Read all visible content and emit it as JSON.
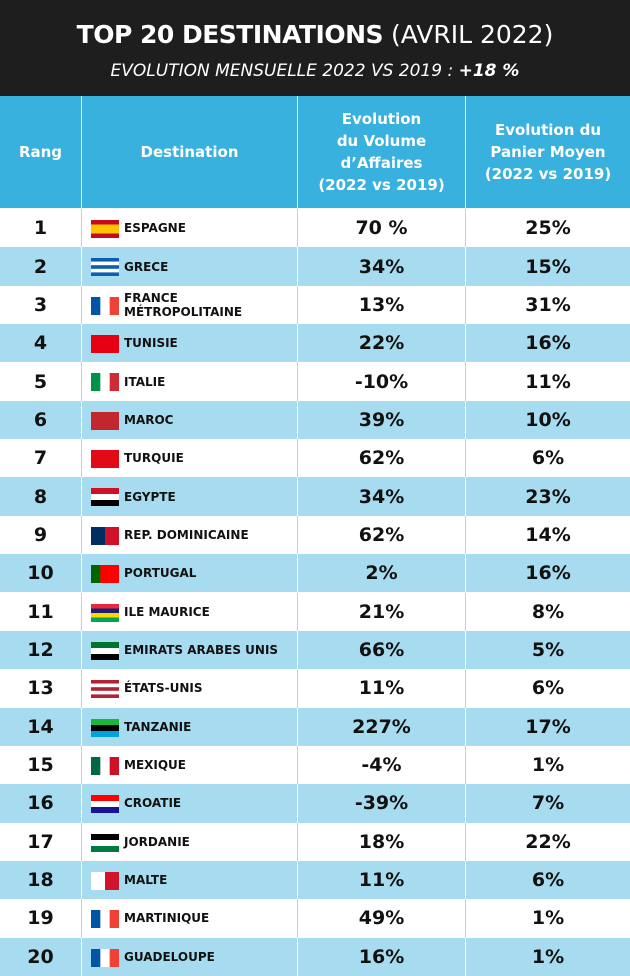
{
  "header": {
    "title": "TOP 20 DESTINATIONS",
    "title_suffix": "(AVRIL 2022)",
    "subtitle": "EVOLUTION MENSUELLE 2022 VS 2019 :",
    "subtitle_value": "+18 %"
  },
  "table": {
    "columns": [
      [
        "Rang"
      ],
      [
        "Destination"
      ],
      [
        "Evolution",
        "du Volume",
        "d’Affaires",
        "(2022 vs 2019)"
      ],
      [
        "Evolution du",
        "Panier Moyen",
        "(2022 vs 2019)"
      ]
    ],
    "rows": [
      [
        "1",
        "ESPAGNE",
        "70 %",
        "25%"
      ],
      [
        "2",
        "GRECE",
        "34%",
        "15%"
      ],
      [
        "3",
        "FRANCE MÉTROPOLITAINE",
        "13%",
        "31%"
      ],
      [
        "4",
        "TUNISIE",
        "22%",
        "16%"
      ],
      [
        "5",
        "ITALIE",
        "-10%",
        "11%"
      ],
      [
        "6",
        "MAROC",
        "39%",
        "10%"
      ],
      [
        "7",
        "TURQUIE",
        "62%",
        "6%"
      ],
      [
        "8",
        "EGYPTE",
        "34%",
        "23%"
      ],
      [
        "9",
        "REP. DOMINICAINE",
        "62%",
        "14%"
      ],
      [
        "10",
        "PORTUGAL",
        "2%",
        "16%"
      ],
      [
        "11",
        "ILE MAURICE",
        "21%",
        "8%"
      ],
      [
        "12",
        "EMIRATS ARABES UNIS",
        "66%",
        "5%"
      ],
      [
        "13",
        "ÉTATS-UNIS",
        "11%",
        "6%"
      ],
      [
        "14",
        "TANZANIE",
        "227%",
        "17%"
      ],
      [
        "15",
        "MEXIQUE",
        "-4%",
        "1%"
      ],
      [
        "16",
        "CROATIE",
        "-39%",
        "7%"
      ],
      [
        "17",
        "JORDANIE",
        "18%",
        "22%"
      ],
      [
        "18",
        "MALTE",
        "11%",
        "6%"
      ],
      [
        "19",
        "MARTINIQUE",
        "49%",
        "1%"
      ],
      [
        "20",
        "GUADELOUPE",
        "16%",
        "1%"
      ]
    ]
  }
}
